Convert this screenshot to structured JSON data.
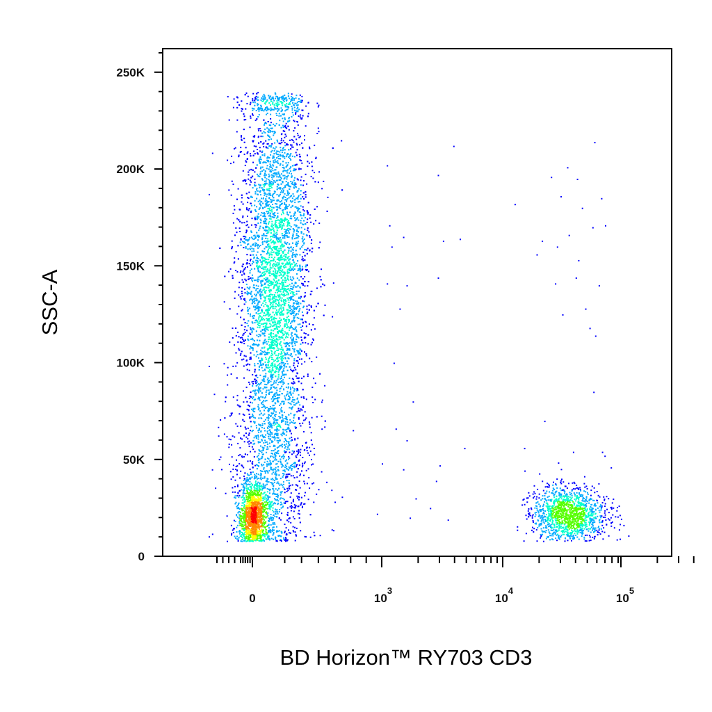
{
  "chart_data": {
    "type": "scatter",
    "subtype": "flow-cytometry-density-dot-plot",
    "xlabel": "BD Horizon™ RY703 CD3",
    "ylabel": "SSC-A",
    "x_scale": "biexponential",
    "ylim": [
      0,
      262144
    ],
    "grid": false,
    "legend": "none",
    "x_ticks": [
      {
        "value": 0,
        "base": "0",
        "exp": ""
      },
      {
        "value": 1000,
        "base": "10",
        "exp": "3"
      },
      {
        "value": 10000,
        "base": "10",
        "exp": "4"
      },
      {
        "value": 100000,
        "base": "10",
        "exp": "5"
      }
    ],
    "y_ticks": [
      {
        "value": 0,
        "label": "0"
      },
      {
        "value": 50000,
        "label": "50K"
      },
      {
        "value": 100000,
        "label": "100K"
      },
      {
        "value": 150000,
        "label": "150K"
      },
      {
        "value": 200000,
        "label": "200K"
      },
      {
        "value": 250000,
        "label": "250K"
      }
    ],
    "density_colormap": [
      "#0000ff",
      "#00aaff",
      "#00ffcc",
      "#55ff00",
      "#ffff00",
      "#ff8800",
      "#ff0000"
    ],
    "populations": [
      {
        "name": "",
        "x_center": 180,
        "x_spread": 150,
        "y_center": 145000,
        "y_spread": 55000,
        "weight": 0.62
      },
      {
        "name": "",
        "x_center": 0,
        "x_spread": 60,
        "y_center": 22000,
        "y_spread": 8000,
        "weight": 0.14
      },
      {
        "name": "",
        "x_center": 160,
        "x_spread": 180,
        "y_center": 45000,
        "y_spread": 25000,
        "weight": 0.09
      },
      {
        "name": "",
        "x_center": 35000,
        "x_spread": 15000,
        "y_center": 22000,
        "y_spread": 7000,
        "weight": 0.15
      }
    ],
    "sparse_points": [
      [
        1100,
        202000
      ],
      [
        1150,
        171000
      ],
      [
        1200,
        160000
      ],
      [
        1500,
        165000
      ],
      [
        1100,
        141000
      ],
      [
        1600,
        140000
      ],
      [
        1400,
        128000
      ],
      [
        1250,
        100000
      ],
      [
        1800,
        80000
      ],
      [
        1300,
        66000
      ],
      [
        1600,
        60000
      ],
      [
        1000,
        48000
      ],
      [
        1500,
        45000
      ],
      [
        3000,
        47000
      ],
      [
        2800,
        39000
      ],
      [
        1900,
        30000
      ],
      [
        1700,
        20000
      ],
      [
        900,
        22000
      ],
      [
        2900,
        197000
      ],
      [
        3900,
        212000
      ],
      [
        3200,
        163000
      ],
      [
        4400,
        164000
      ],
      [
        2900,
        144000
      ],
      [
        4800,
        56000
      ],
      [
        12500,
        182000
      ],
      [
        19000,
        156000
      ],
      [
        21000,
        163000
      ],
      [
        25000,
        196000
      ],
      [
        30000,
        186000
      ],
      [
        34000,
        201000
      ],
      [
        41000,
        195000
      ],
      [
        45000,
        180000
      ],
      [
        57000,
        214000
      ],
      [
        65000,
        185000
      ],
      [
        70000,
        171000
      ],
      [
        28000,
        160000
      ],
      [
        35000,
        166000
      ],
      [
        42000,
        153000
      ],
      [
        55000,
        170000
      ],
      [
        27000,
        141000
      ],
      [
        40000,
        144000
      ],
      [
        48000,
        128000
      ],
      [
        52000,
        118000
      ],
      [
        58000,
        114000
      ],
      [
        62000,
        140000
      ],
      [
        31000,
        125000
      ],
      [
        56000,
        85000
      ],
      [
        22000,
        70000
      ],
      [
        15000,
        56000
      ],
      [
        38000,
        54000
      ],
      [
        66000,
        54000
      ],
      [
        78000,
        46000
      ],
      [
        2500,
        25000
      ],
      [
        3500,
        19000
      ]
    ]
  }
}
